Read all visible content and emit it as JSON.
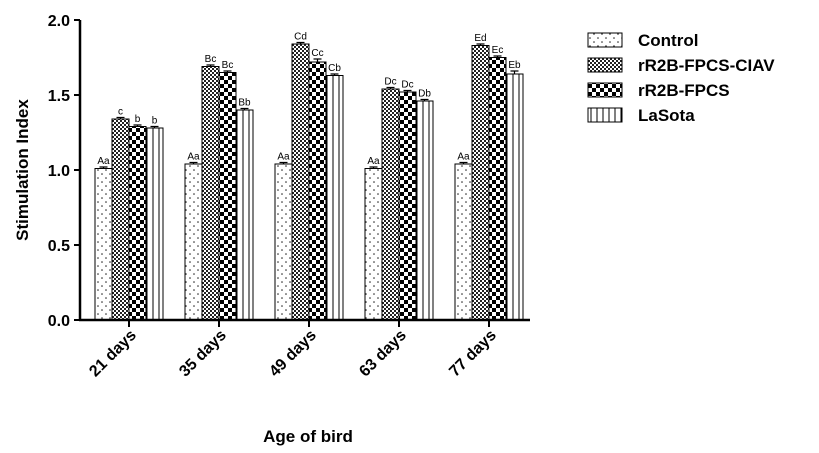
{
  "chart_data": {
    "type": "bar",
    "xlabel": "Age of bird",
    "ylabel": "Stimulation Index",
    "ylim": [
      0,
      2.0
    ],
    "yticks": [
      "0.0",
      "0.5",
      "1.0",
      "1.5",
      "2.0"
    ],
    "categories": [
      "21 days",
      "35 days",
      "49 days",
      "63 days",
      "77 days"
    ],
    "series": [
      {
        "name": "Control",
        "pattern": "dots",
        "values": [
          1.01,
          1.04,
          1.04,
          1.01,
          1.04
        ],
        "errors": [
          0.01,
          0.01,
          0.01,
          0.01,
          0.01
        ],
        "labels": [
          "Aa",
          "Aa",
          "Aa",
          "Aa",
          "Aa"
        ]
      },
      {
        "name": "rR2B-FPCS-CIAV",
        "pattern": "dense-checker",
        "values": [
          1.34,
          1.69,
          1.84,
          1.54,
          1.83
        ],
        "errors": [
          0.01,
          0.01,
          0.01,
          0.01,
          0.01
        ],
        "labels": [
          "c",
          "Bc",
          "Cd",
          "Dc",
          "Ed"
        ]
      },
      {
        "name": "rR2B-FPCS",
        "pattern": "large-checker",
        "values": [
          1.29,
          1.65,
          1.72,
          1.52,
          1.75
        ],
        "errors": [
          0.01,
          0.01,
          0.02,
          0.01,
          0.01
        ],
        "labels": [
          "b",
          "Bc",
          "Cc",
          "Dc",
          "Ec"
        ]
      },
      {
        "name": "LaSota",
        "pattern": "vertical-lines",
        "values": [
          1.28,
          1.4,
          1.63,
          1.46,
          1.64
        ],
        "errors": [
          0.01,
          0.01,
          0.01,
          0.01,
          0.02
        ],
        "labels": [
          "b",
          "Bb",
          "Cb",
          "Db",
          "Eb"
        ]
      }
    ],
    "legend_position": "right",
    "grid": false
  }
}
